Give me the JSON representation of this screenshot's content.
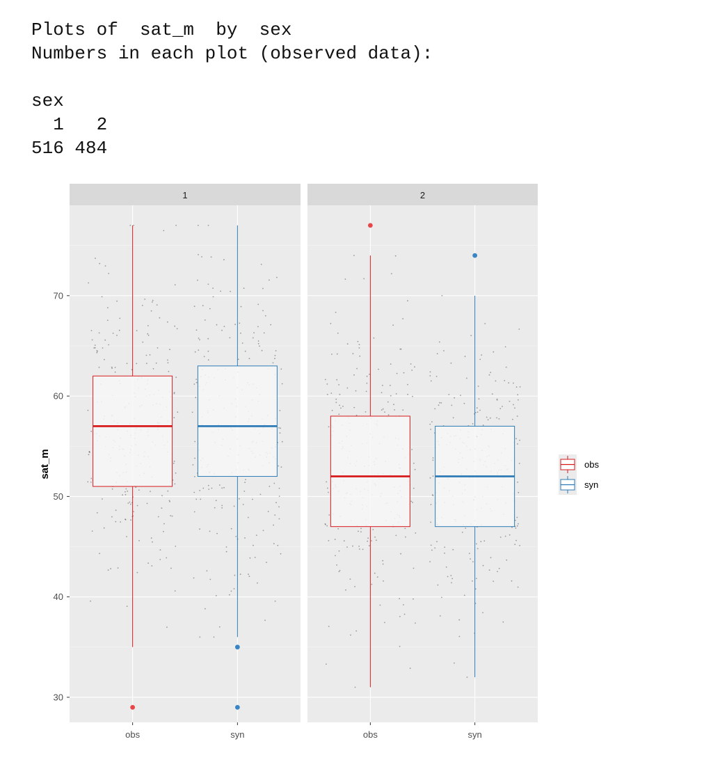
{
  "console": {
    "line1": "Plots of  sat_m  by  sex",
    "line2": "Numbers in each plot (observed data):",
    "line3": "",
    "line4": "sex",
    "line5": "  1   2",
    "line6": "516 484"
  },
  "chart_data": {
    "type": "boxplot",
    "ylabel": "sat_m",
    "ylim": [
      27.5,
      79
    ],
    "yticks": [
      30,
      40,
      50,
      60,
      70
    ],
    "categories": [
      "obs",
      "syn"
    ],
    "facets": [
      {
        "label": "1",
        "n_observed": 516,
        "boxes": [
          {
            "group": "obs",
            "q1": 51,
            "median": 57,
            "q3": 62,
            "whisker_low": 35,
            "whisker_high": 77,
            "outliers": [
              29
            ]
          },
          {
            "group": "syn",
            "q1": 52,
            "median": 57,
            "q3": 63,
            "whisker_low": 36,
            "whisker_high": 77,
            "outliers": [
              35,
              29
            ]
          }
        ]
      },
      {
        "label": "2",
        "n_observed": 484,
        "boxes": [
          {
            "group": "obs",
            "q1": 47,
            "median": 52,
            "q3": 58,
            "whisker_low": 31,
            "whisker_high": 74,
            "outliers": [
              77
            ]
          },
          {
            "group": "syn",
            "q1": 47,
            "median": 52,
            "q3": 57,
            "whisker_low": 32,
            "whisker_high": 70,
            "outliers": [
              74
            ]
          }
        ]
      }
    ],
    "legend": {
      "position": "right",
      "items": [
        {
          "label": "obs",
          "color": "#d7191c"
        },
        {
          "label": "syn",
          "color": "#2c7bb6"
        }
      ]
    },
    "grid": true
  },
  "colors": {
    "obs": "#d7191c",
    "syn": "#2c7bb6",
    "obs_outlier": "#e8474a",
    "syn_outlier": "#3a85c4",
    "panel_bg": "#ebebeb",
    "strip_bg": "#d9d9d9",
    "box_fill": "#f7f7f7"
  }
}
